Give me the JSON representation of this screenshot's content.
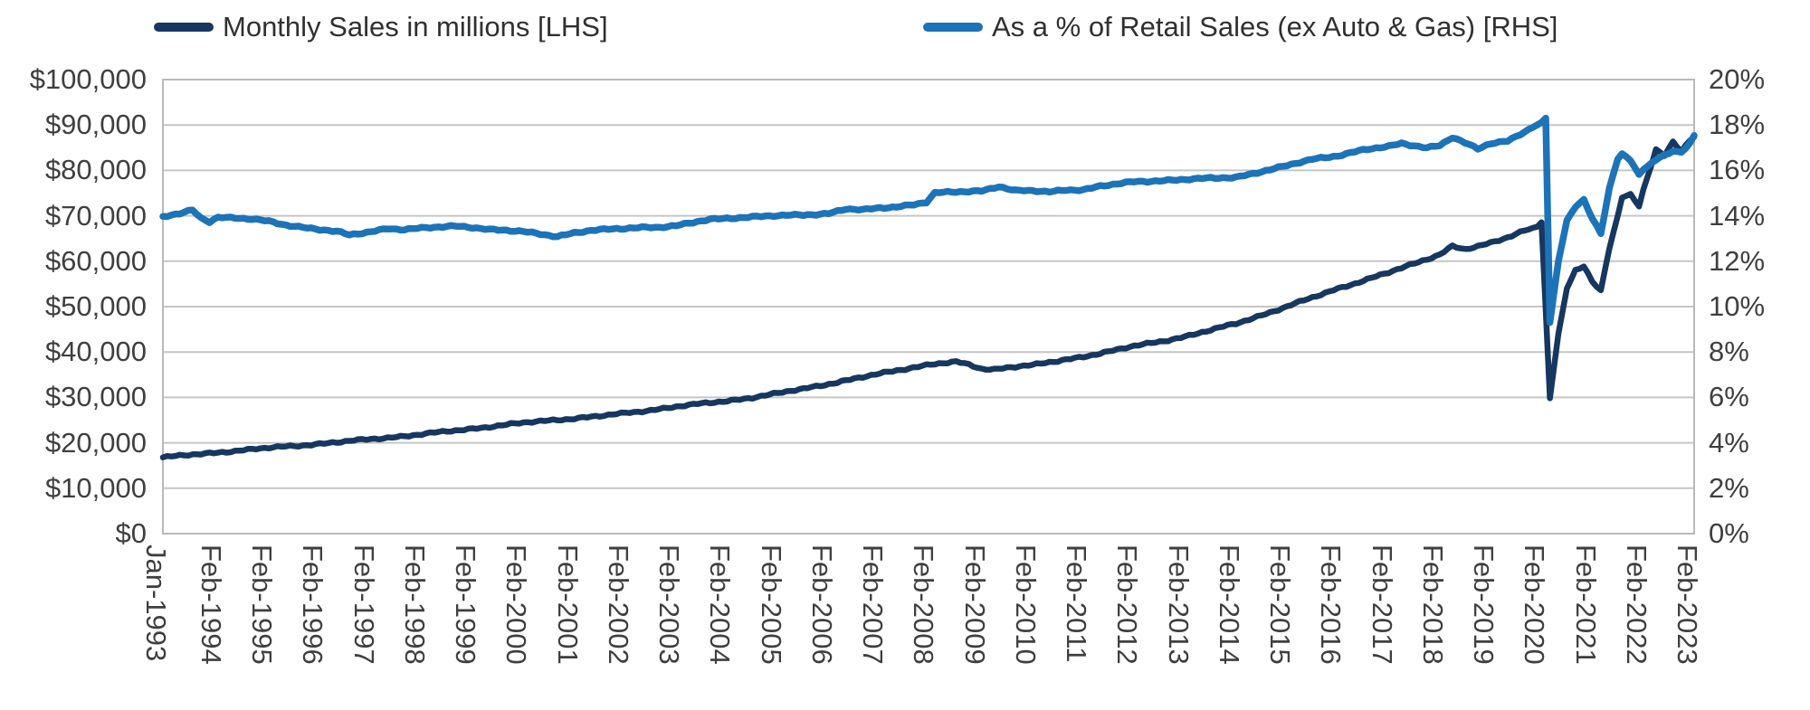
{
  "background": "#ffffff",
  "legend": {
    "items": [
      {
        "label": "Monthly Sales in millions [LHS]",
        "color": "#17375e"
      },
      {
        "label": "As a % of Retail Sales (ex Auto & Gas) [RHS]",
        "color": "#1d73b8"
      }
    ]
  },
  "colors": {
    "gridline": "#c6c6c6",
    "plot_border": "#b9b9b9",
    "axis_text": "#3f3f3f",
    "series_lhs": "#17375e",
    "series_rhs": "#1d73b8"
  },
  "chart_data": {
    "type": "line",
    "title": "",
    "grid": "horizontal",
    "legend_position": "top",
    "dual_axis": true,
    "x_axis": {
      "unit": "month",
      "month_span": 361,
      "tick_months": [
        0,
        13,
        25,
        37,
        49,
        61,
        73,
        85,
        97,
        109,
        121,
        133,
        145,
        157,
        169,
        181,
        193,
        205,
        217,
        229,
        241,
        253,
        265,
        277,
        289,
        301,
        313,
        325,
        337,
        349,
        361
      ],
      "tick_labels": [
        "Jan-1993",
        "Feb-1994",
        "Feb-1995",
        "Feb-1996",
        "Feb-1997",
        "Feb-1998",
        "Feb-1999",
        "Feb-2000",
        "Feb-2001",
        "Feb-2002",
        "Feb-2003",
        "Feb-2004",
        "Feb-2005",
        "Feb-2006",
        "Feb-2007",
        "Feb-2008",
        "Feb-2009",
        "Feb-2010",
        "Feb-2011",
        "Feb-2012",
        "Feb-2013",
        "Feb-2014",
        "Feb-2015",
        "Feb-2016",
        "Feb-2017",
        "Feb-2018",
        "Feb-2019",
        "Feb-2020",
        "Feb-2021",
        "Feb-2022",
        "Feb-2023"
      ],
      "label_rotation_deg": 90
    },
    "left_axis": {
      "range": [
        0,
        100000
      ],
      "tick_values": [
        100000,
        90000,
        80000,
        70000,
        60000,
        50000,
        40000,
        30000,
        20000,
        10000,
        0
      ],
      "tick_labels": [
        "$100,000",
        "$90,000",
        "$80,000",
        "$70,000",
        "$60,000",
        "$50,000",
        "$40,000",
        "$30,000",
        "$20,000",
        "$10,000",
        "$0"
      ]
    },
    "right_axis": {
      "range": [
        0,
        20
      ],
      "tick_values": [
        20,
        18,
        16,
        14,
        12,
        10,
        8,
        6,
        4,
        2,
        0
      ],
      "tick_labels": [
        "20%",
        "18%",
        "16%",
        "14%",
        "12%",
        "10%",
        "8%",
        "6%",
        "4%",
        "2%",
        "0%"
      ]
    },
    "series": [
      {
        "name": "Monthly Sales in millions [LHS]",
        "axis": "left",
        "unit": "USD millions",
        "color": "#17375e",
        "stroke_width": 6.5,
        "noise_amp": 300,
        "anchors_month_value": [
          [
            0,
            16800
          ],
          [
            6,
            17300
          ],
          [
            10,
            17600
          ],
          [
            13,
            17900
          ],
          [
            19,
            18400
          ],
          [
            25,
            18900
          ],
          [
            31,
            19300
          ],
          [
            37,
            19800
          ],
          [
            43,
            20300
          ],
          [
            49,
            20800
          ],
          [
            55,
            21300
          ],
          [
            61,
            21900
          ],
          [
            67,
            22500
          ],
          [
            73,
            23100
          ],
          [
            79,
            23800
          ],
          [
            85,
            24400
          ],
          [
            91,
            24900
          ],
          [
            97,
            25400
          ],
          [
            103,
            25900
          ],
          [
            109,
            26500
          ],
          [
            115,
            27200
          ],
          [
            121,
            28000
          ],
          [
            127,
            28600
          ],
          [
            133,
            29200
          ],
          [
            139,
            30000
          ],
          [
            145,
            30900
          ],
          [
            151,
            31900
          ],
          [
            157,
            33000
          ],
          [
            163,
            34100
          ],
          [
            169,
            35200
          ],
          [
            175,
            36300
          ],
          [
            181,
            37300
          ],
          [
            187,
            37800
          ],
          [
            190,
            37200
          ],
          [
            193,
            36300
          ],
          [
            196,
            36200
          ],
          [
            199,
            36600
          ],
          [
            202,
            36900
          ],
          [
            205,
            37100
          ],
          [
            211,
            38000
          ],
          [
            217,
            39000
          ],
          [
            223,
            40100
          ],
          [
            229,
            41300
          ],
          [
            235,
            42300
          ],
          [
            241,
            43400
          ],
          [
            247,
            44800
          ],
          [
            253,
            46300
          ],
          [
            259,
            48100
          ],
          [
            265,
            50000
          ],
          [
            271,
            52000
          ],
          [
            277,
            54000
          ],
          [
            283,
            55700
          ],
          [
            289,
            57500
          ],
          [
            295,
            59500
          ],
          [
            301,
            61500
          ],
          [
            304,
            63300
          ],
          [
            307,
            62600
          ],
          [
            310,
            63200
          ],
          [
            313,
            64000
          ],
          [
            317,
            65300
          ],
          [
            321,
            66800
          ],
          [
            324,
            67600
          ],
          [
            325,
            68600
          ],
          [
            327,
            29800
          ],
          [
            329,
            44000
          ],
          [
            331,
            54000
          ],
          [
            333,
            58000
          ],
          [
            335,
            59000
          ],
          [
            337,
            55500
          ],
          [
            339,
            53500
          ],
          [
            341,
            63000
          ],
          [
            343,
            70000
          ],
          [
            344,
            74200
          ],
          [
            346,
            74600
          ],
          [
            348,
            72000
          ],
          [
            349,
            75500
          ],
          [
            350,
            78500
          ],
          [
            351,
            81500
          ],
          [
            352,
            84600
          ],
          [
            354,
            83300
          ],
          [
            356,
            86200
          ],
          [
            358,
            84200
          ],
          [
            360,
            86800
          ],
          [
            361,
            87600
          ]
        ]
      },
      {
        "name": "As a % of Retail Sales (ex Auto & Gas) [RHS]",
        "axis": "right",
        "unit": "%",
        "color": "#1d73b8",
        "stroke_width": 7.5,
        "noise_amp": 0.055,
        "anchors_month_value": [
          [
            0,
            13.95
          ],
          [
            4,
            14.1
          ],
          [
            7,
            14.25
          ],
          [
            9,
            13.9
          ],
          [
            11,
            13.75
          ],
          [
            13,
            13.95
          ],
          [
            17,
            13.9
          ],
          [
            21,
            13.85
          ],
          [
            25,
            13.75
          ],
          [
            29,
            13.6
          ],
          [
            33,
            13.5
          ],
          [
            37,
            13.4
          ],
          [
            41,
            13.3
          ],
          [
            44,
            13.15
          ],
          [
            49,
            13.3
          ],
          [
            53,
            13.45
          ],
          [
            57,
            13.4
          ],
          [
            61,
            13.45
          ],
          [
            65,
            13.5
          ],
          [
            69,
            13.55
          ],
          [
            73,
            13.5
          ],
          [
            77,
            13.4
          ],
          [
            81,
            13.35
          ],
          [
            85,
            13.3
          ],
          [
            89,
            13.2
          ],
          [
            93,
            13.1
          ],
          [
            97,
            13.25
          ],
          [
            101,
            13.35
          ],
          [
            105,
            13.4
          ],
          [
            109,
            13.45
          ],
          [
            113,
            13.5
          ],
          [
            117,
            13.5
          ],
          [
            121,
            13.55
          ],
          [
            125,
            13.7
          ],
          [
            129,
            13.85
          ],
          [
            133,
            13.9
          ],
          [
            139,
            13.95
          ],
          [
            145,
            14.0
          ],
          [
            151,
            14.05
          ],
          [
            157,
            14.1
          ],
          [
            161,
            14.3
          ],
          [
            165,
            14.25
          ],
          [
            169,
            14.35
          ],
          [
            173,
            14.4
          ],
          [
            177,
            14.5
          ],
          [
            180,
            14.6
          ],
          [
            182,
            15.0
          ],
          [
            187,
            15.05
          ],
          [
            193,
            15.1
          ],
          [
            197,
            15.3
          ],
          [
            201,
            15.1
          ],
          [
            205,
            15.1
          ],
          [
            209,
            15.05
          ],
          [
            213,
            15.15
          ],
          [
            217,
            15.15
          ],
          [
            221,
            15.3
          ],
          [
            225,
            15.4
          ],
          [
            229,
            15.5
          ],
          [
            235,
            15.55
          ],
          [
            241,
            15.6
          ],
          [
            247,
            15.65
          ],
          [
            253,
            15.7
          ],
          [
            259,
            15.95
          ],
          [
            265,
            16.2
          ],
          [
            271,
            16.5
          ],
          [
            277,
            16.65
          ],
          [
            283,
            16.9
          ],
          [
            289,
            17.05
          ],
          [
            292,
            17.2
          ],
          [
            295,
            17.1
          ],
          [
            298,
            17.0
          ],
          [
            301,
            17.1
          ],
          [
            304,
            17.45
          ],
          [
            307,
            17.2
          ],
          [
            310,
            16.95
          ],
          [
            313,
            17.2
          ],
          [
            317,
            17.3
          ],
          [
            320,
            17.6
          ],
          [
            323,
            17.9
          ],
          [
            325,
            18.1
          ],
          [
            326,
            18.3
          ],
          [
            327,
            9.3
          ],
          [
            329,
            12.0
          ],
          [
            331,
            13.8
          ],
          [
            333,
            14.4
          ],
          [
            335,
            14.7
          ],
          [
            337,
            13.9
          ],
          [
            339,
            13.25
          ],
          [
            341,
            15.2
          ],
          [
            343,
            16.5
          ],
          [
            344,
            16.7
          ],
          [
            346,
            16.45
          ],
          [
            348,
            15.8
          ],
          [
            349,
            16.05
          ],
          [
            351,
            16.3
          ],
          [
            353,
            16.6
          ],
          [
            355,
            16.75
          ],
          [
            356,
            16.9
          ],
          [
            358,
            16.8
          ],
          [
            360,
            17.2
          ],
          [
            361,
            17.5
          ]
        ]
      }
    ]
  }
}
